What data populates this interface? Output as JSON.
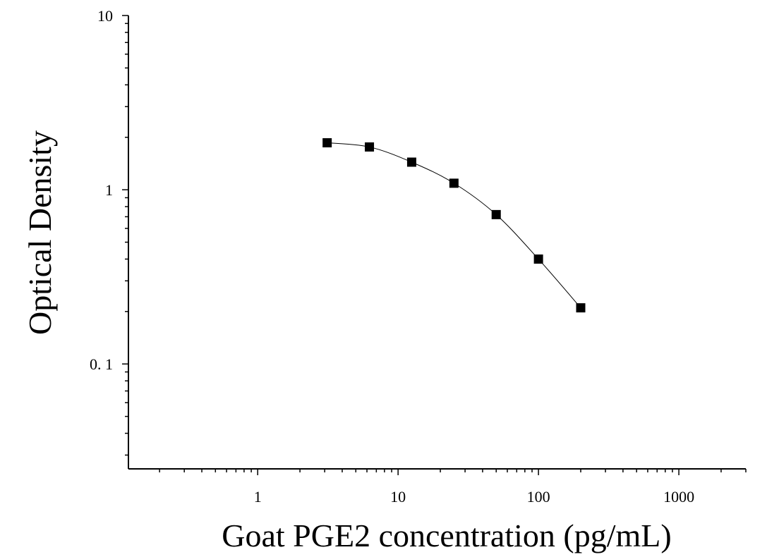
{
  "chart_data": {
    "type": "scatter",
    "title": "",
    "xlabel": "Goat PGE2 concentration (pg/mL)",
    "ylabel": "Optical Density",
    "x_scale": "log",
    "y_scale": "log",
    "xlim": [
      0.12,
      3000
    ],
    "ylim": [
      0.025,
      10
    ],
    "x_tick_labels": [
      "1",
      "10",
      "100",
      "1000"
    ],
    "y_tick_labels": [
      "10",
      "1",
      "0. 1"
    ],
    "grid": false,
    "legend": "none",
    "marker_color": "#000000",
    "line_color": "#000000",
    "series": [
      {
        "x": [
          3.125,
          6.25,
          12.5,
          25,
          50,
          100,
          200
        ],
        "y": [
          1.86,
          1.76,
          1.44,
          1.09,
          0.72,
          0.4,
          0.21
        ],
        "fit_curve": true
      }
    ]
  }
}
